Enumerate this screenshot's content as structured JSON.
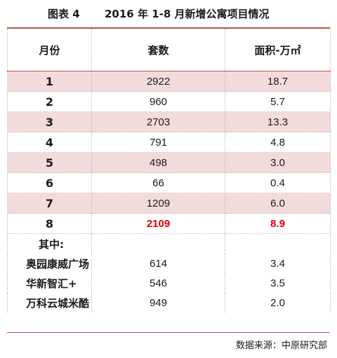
{
  "figure": {
    "number": "图表 4",
    "title": "2016 年 1-8 月新增公寓项目情况"
  },
  "chart_data": {
    "type": "table",
    "columns": [
      "月份",
      "套数",
      "面积-万㎡"
    ],
    "rows": [
      [
        "1",
        "2922",
        "18.7"
      ],
      [
        "2",
        "960",
        "5.7"
      ],
      [
        "3",
        "2703",
        "13.3"
      ],
      [
        "4",
        "791",
        "4.8"
      ],
      [
        "5",
        "498",
        "3.0"
      ],
      [
        "6",
        "66",
        "0.4"
      ],
      [
        "7",
        "1209",
        "6.0"
      ],
      [
        "8",
        "2109",
        "8.9"
      ]
    ],
    "highlight_color": "#e00000",
    "shade_color": "#f2dcdb",
    "subsection_label": "其中:",
    "projects": [
      [
        "奥园康威广场",
        "614",
        "3.4"
      ],
      [
        "华新智汇+",
        "546",
        "3.5"
      ],
      [
        "万科云城米酷",
        "949",
        "2.0"
      ]
    ]
  },
  "source": "数据来源：中原研究部"
}
